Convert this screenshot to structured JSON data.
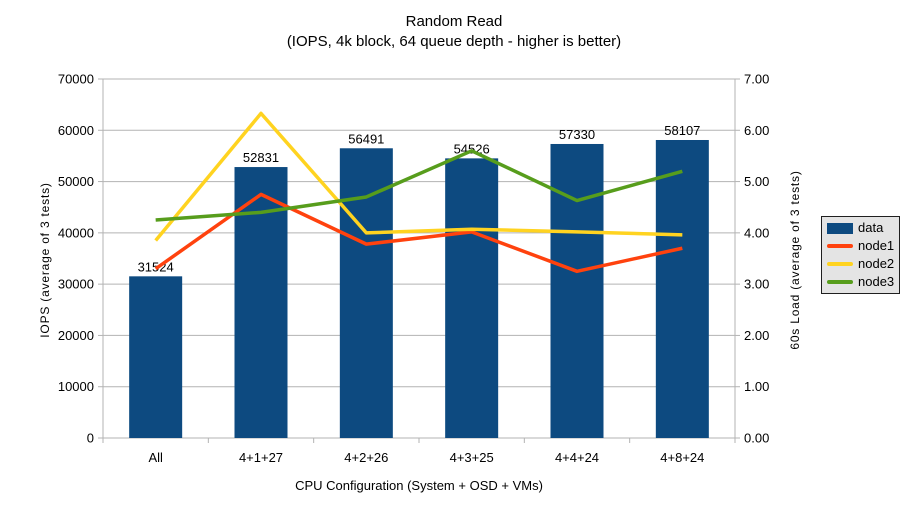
{
  "chart_data": {
    "type": "bar",
    "subtype": "combo-bar-line-dual-axis",
    "title": "Random Read",
    "subtitle": "(IOPS, 4k block, 64 queue depth - higher is better)",
    "xlabel": "CPU Configuration (System + OSD + VMs)",
    "ylabel_left": "IOPS (average of 3 tests)",
    "ylabel_right": "60s Load (average of 3 tests)",
    "categories": [
      "All",
      "4+1+27",
      "4+2+26",
      "4+3+25",
      "4+4+24",
      "4+8+24"
    ],
    "ylim_left": [
      0,
      70000
    ],
    "ylim_right": [
      0,
      7.0
    ],
    "yticks_left": [
      "0",
      "10000",
      "20000",
      "30000",
      "40000",
      "50000",
      "60000",
      "70000"
    ],
    "yticks_right": [
      "0.00",
      "1.00",
      "2.00",
      "3.00",
      "4.00",
      "5.00",
      "6.00",
      "7.00"
    ],
    "grid": "horizontal",
    "legend_position": "right",
    "series": [
      {
        "name": "data",
        "type": "bar",
        "axis": "left",
        "color": "#0d4a80",
        "values": [
          31524,
          52831,
          56491,
          54526,
          57330,
          58107
        ],
        "data_labels": [
          "31524",
          "52831",
          "56491",
          "54526",
          "57330",
          "58107"
        ]
      },
      {
        "name": "node1",
        "type": "line",
        "axis": "right",
        "color": "#ff420e",
        "values": [
          3.3,
          4.75,
          3.78,
          4.02,
          3.25,
          3.7
        ]
      },
      {
        "name": "node2",
        "type": "line",
        "axis": "right",
        "color": "#ffd320",
        "values": [
          3.85,
          6.33,
          4.0,
          4.07,
          4.02,
          3.96
        ]
      },
      {
        "name": "node3",
        "type": "line",
        "axis": "right",
        "color": "#579d1c",
        "values": [
          4.25,
          4.4,
          4.7,
          5.6,
          4.63,
          5.2
        ]
      }
    ],
    "colors": {
      "gridline": "#b3b3b3",
      "axis_line": "#b3b3b3",
      "legend_bg": "#e4e4e4",
      "legend_border": "#1f1f1f",
      "text": "#000000",
      "background": "#ffffff"
    }
  }
}
